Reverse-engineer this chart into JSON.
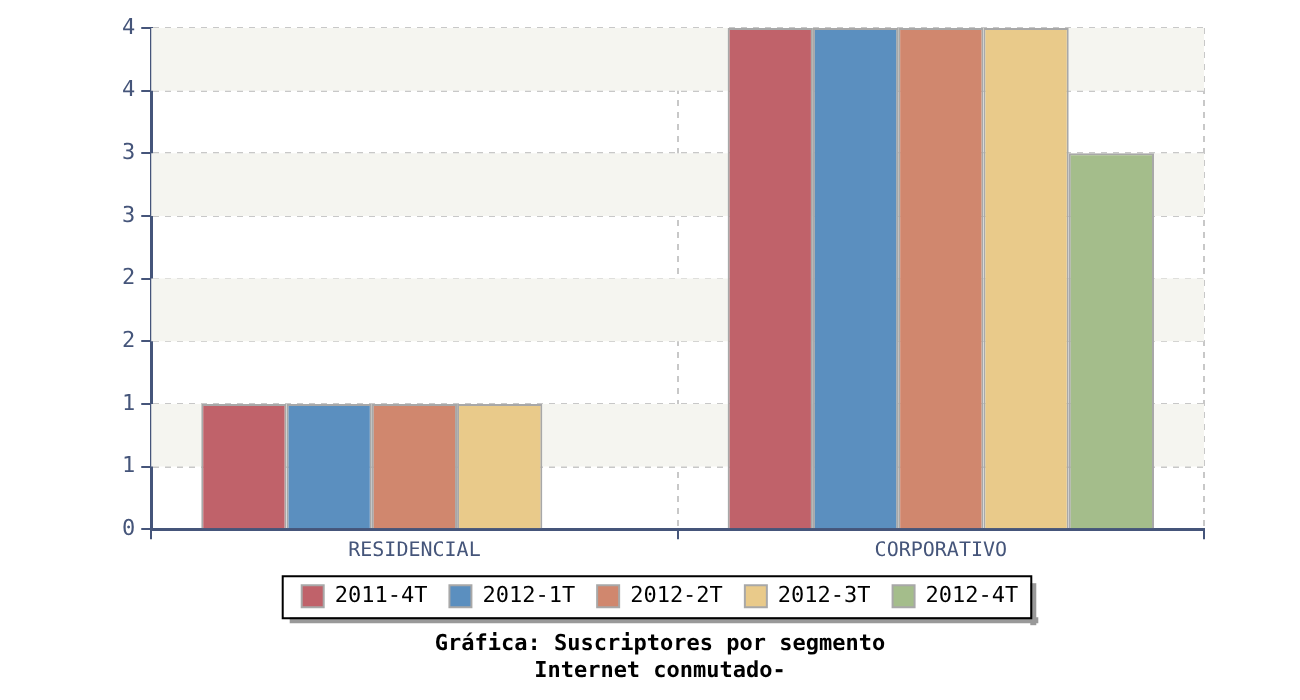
{
  "chart_data": {
    "type": "bar",
    "title": "Gráfica: Suscriptores por segmento\nInternet conmutado-",
    "categories": [
      "RESIDENCIAL",
      "CORPORATIVO"
    ],
    "series": [
      {
        "name": "2011-4T",
        "color": "#c0626a",
        "values": [
          1,
          4
        ]
      },
      {
        "name": "2012-1T",
        "color": "#5b8fbf",
        "values": [
          1,
          4
        ]
      },
      {
        "name": "2012-2T",
        "color": "#d0876e",
        "values": [
          1,
          4
        ]
      },
      {
        "name": "2012-3T",
        "color": "#e9ca8a",
        "values": [
          1,
          4
        ]
      },
      {
        "name": "2012-4T",
        "color": "#a4bd8b",
        "values": [
          null,
          3
        ]
      }
    ],
    "ylim": [
      0,
      4
    ],
    "yticks": [
      0,
      {
        "value": 0.5,
        "label": "1"
      },
      1,
      {
        "value": 1.5,
        "label": "2"
      },
      2,
      {
        "value": 2.5,
        "label": "3"
      },
      3,
      {
        "value": 3.5,
        "label": "4"
      },
      4
    ],
    "grid": true,
    "legend": "bottom"
  }
}
